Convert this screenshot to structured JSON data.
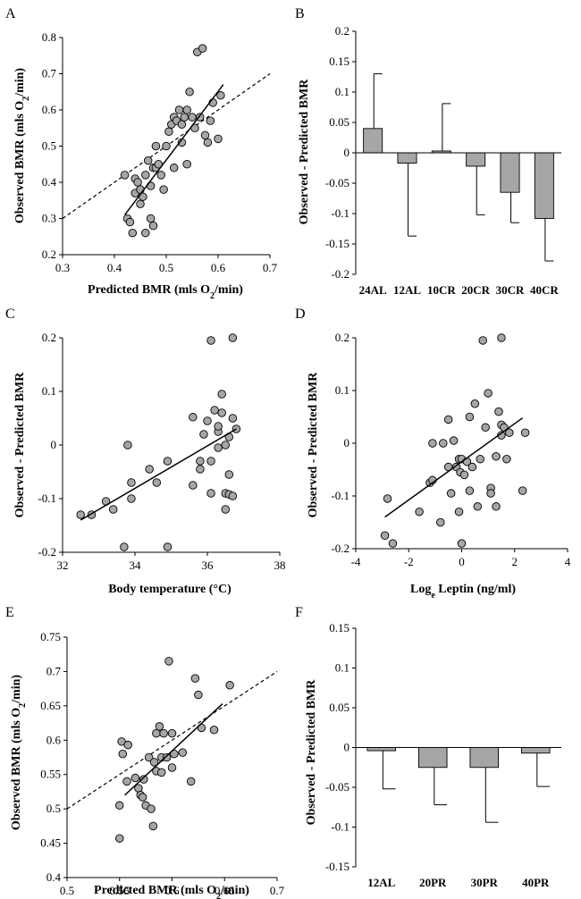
{
  "chart_data": [
    {
      "panel": "A",
      "type": "scatter",
      "xlabel": "Predicted BMR (mls O2/min)",
      "ylabel": "Observed BMR (mls O2/min)",
      "xlim": [
        0.3,
        0.7
      ],
      "ylim": [
        0.2,
        0.8
      ],
      "xticks": [
        0.3,
        0.4,
        0.5,
        0.6,
        0.7
      ],
      "yticks": [
        0.2,
        0.3,
        0.4,
        0.5,
        0.6,
        0.7,
        0.8
      ],
      "points": [
        [
          0.42,
          0.42
        ],
        [
          0.425,
          0.3
        ],
        [
          0.43,
          0.29
        ],
        [
          0.435,
          0.26
        ],
        [
          0.44,
          0.37
        ],
        [
          0.44,
          0.41
        ],
        [
          0.445,
          0.4
        ],
        [
          0.45,
          0.34
        ],
        [
          0.45,
          0.38
        ],
        [
          0.455,
          0.36
        ],
        [
          0.46,
          0.42
        ],
        [
          0.46,
          0.26
        ],
        [
          0.465,
          0.46
        ],
        [
          0.47,
          0.3
        ],
        [
          0.47,
          0.39
        ],
        [
          0.475,
          0.44
        ],
        [
          0.475,
          0.28
        ],
        [
          0.48,
          0.44
        ],
        [
          0.48,
          0.5
        ],
        [
          0.485,
          0.45
        ],
        [
          0.49,
          0.42
        ],
        [
          0.495,
          0.38
        ],
        [
          0.5,
          0.5
        ],
        [
          0.505,
          0.54
        ],
        [
          0.51,
          0.56
        ],
        [
          0.515,
          0.58
        ],
        [
          0.515,
          0.44
        ],
        [
          0.52,
          0.57
        ],
        [
          0.525,
          0.6
        ],
        [
          0.53,
          0.56
        ],
        [
          0.53,
          0.51
        ],
        [
          0.535,
          0.58
        ],
        [
          0.54,
          0.45
        ],
        [
          0.54,
          0.6
        ],
        [
          0.545,
          0.65
        ],
        [
          0.55,
          0.58
        ],
        [
          0.555,
          0.55
        ],
        [
          0.56,
          0.76
        ],
        [
          0.565,
          0.58
        ],
        [
          0.57,
          0.77
        ],
        [
          0.575,
          0.53
        ],
        [
          0.58,
          0.51
        ],
        [
          0.585,
          0.57
        ],
        [
          0.59,
          0.62
        ],
        [
          0.6,
          0.52
        ],
        [
          0.605,
          0.64
        ]
      ],
      "fit_line": {
        "x": [
          0.42,
          0.61
        ],
        "y": [
          0.31,
          0.67
        ]
      },
      "identity_line": {
        "x": [
          0.3,
          0.7
        ],
        "y": [
          0.3,
          0.7
        ]
      }
    },
    {
      "panel": "B",
      "type": "bar",
      "ylabel": "Observed - Predicted BMR",
      "ylim": [
        -0.2,
        0.2
      ],
      "yticks": [
        -0.2,
        -0.15,
        -0.1,
        -0.05,
        0,
        0.05,
        0.1,
        0.15,
        0.2
      ],
      "categories": [
        "24AL",
        "12AL",
        "10CR",
        "20CR",
        "30CR",
        "40CR"
      ],
      "values": [
        0.04,
        -0.017,
        0.003,
        -0.022,
        -0.065,
        -0.108
      ],
      "errors": [
        0.09,
        0.12,
        0.078,
        0.08,
        0.05,
        0.07
      ]
    },
    {
      "panel": "C",
      "type": "scatter",
      "xlabel": "Body temperature (°C)",
      "ylabel": "Observed - Predicted BMR",
      "xlim": [
        32,
        38
      ],
      "ylim": [
        -0.2,
        0.2
      ],
      "xticks": [
        32,
        34,
        36,
        38
      ],
      "yticks": [
        -0.2,
        -0.1,
        0,
        0.1,
        0.2
      ],
      "points": [
        [
          32.5,
          -0.13
        ],
        [
          32.8,
          -0.13
        ],
        [
          33.2,
          -0.105
        ],
        [
          33.4,
          -0.12
        ],
        [
          33.7,
          -0.19
        ],
        [
          33.8,
          0.0
        ],
        [
          33.9,
          -0.07
        ],
        [
          33.9,
          -0.1
        ],
        [
          34.4,
          -0.045
        ],
        [
          34.6,
          -0.07
        ],
        [
          34.9,
          -0.03
        ],
        [
          34.9,
          -0.19
        ],
        [
          35.6,
          0.052
        ],
        [
          35.6,
          -0.075
        ],
        [
          35.8,
          -0.03
        ],
        [
          35.8,
          -0.045
        ],
        [
          35.9,
          0.02
        ],
        [
          36.0,
          0.045
        ],
        [
          36.1,
          -0.03
        ],
        [
          36.1,
          -0.09
        ],
        [
          36.1,
          0.195
        ],
        [
          36.2,
          0.065
        ],
        [
          36.3,
          0.025
        ],
        [
          36.3,
          -0.005
        ],
        [
          36.3,
          0.035
        ],
        [
          36.4,
          0.06
        ],
        [
          36.4,
          0.095
        ],
        [
          36.5,
          -0.12
        ],
        [
          36.5,
          -0.09
        ],
        [
          36.5,
          0.0
        ],
        [
          36.6,
          0.015
        ],
        [
          36.6,
          -0.055
        ],
        [
          36.6,
          -0.092
        ],
        [
          36.7,
          0.2
        ],
        [
          36.7,
          -0.095
        ],
        [
          36.7,
          0.05
        ],
        [
          36.8,
          0.03
        ]
      ],
      "fit_line": {
        "x": [
          32.5,
          36.8
        ],
        "y": [
          -0.14,
          0.03
        ]
      }
    },
    {
      "panel": "D",
      "type": "scatter",
      "xlabel": "Loge Leptin (ng/ml)",
      "ylabel": "Observed - Predicted BMR",
      "xlim": [
        -4,
        4
      ],
      "ylim": [
        -0.2,
        0.2
      ],
      "xticks": [
        -4,
        -2,
        0,
        2,
        4
      ],
      "yticks": [
        -0.2,
        -0.1,
        0,
        0.1,
        0.2
      ],
      "points": [
        [
          -2.9,
          -0.175
        ],
        [
          -2.8,
          -0.105
        ],
        [
          -2.6,
          -0.19
        ],
        [
          -1.6,
          -0.13
        ],
        [
          -1.2,
          -0.075
        ],
        [
          -1.1,
          -0.07
        ],
        [
          -1.1,
          0.0
        ],
        [
          -0.8,
          -0.15
        ],
        [
          -0.7,
          0.0
        ],
        [
          -0.5,
          -0.045
        ],
        [
          -0.5,
          0.045
        ],
        [
          -0.4,
          -0.095
        ],
        [
          -0.3,
          0.005
        ],
        [
          -0.2,
          -0.045
        ],
        [
          -0.1,
          -0.03
        ],
        [
          -0.1,
          -0.13
        ],
        [
          -0.05,
          -0.055
        ],
        [
          0.0,
          -0.19
        ],
        [
          0.0,
          -0.03
        ],
        [
          0.1,
          -0.06
        ],
        [
          0.2,
          -0.035
        ],
        [
          0.3,
          0.05
        ],
        [
          0.3,
          -0.09
        ],
        [
          0.4,
          -0.045
        ],
        [
          0.5,
          0.075
        ],
        [
          0.6,
          -0.12
        ],
        [
          0.7,
          -0.03
        ],
        [
          0.8,
          0.195
        ],
        [
          0.9,
          0.03
        ],
        [
          1.0,
          0.095
        ],
        [
          1.1,
          -0.085
        ],
        [
          1.1,
          -0.095
        ],
        [
          1.3,
          -0.12
        ],
        [
          1.3,
          -0.025
        ],
        [
          1.4,
          0.06
        ],
        [
          1.5,
          0.035
        ],
        [
          1.5,
          0.015
        ],
        [
          1.6,
          0.03
        ],
        [
          1.7,
          -0.03
        ],
        [
          1.8,
          0.02
        ],
        [
          2.3,
          -0.09
        ],
        [
          2.4,
          0.02
        ],
        [
          1.5,
          0.2
        ]
      ],
      "fit_line": {
        "x": [
          -2.9,
          2.3
        ],
        "y": [
          -0.14,
          0.048
        ]
      }
    },
    {
      "panel": "E",
      "type": "scatter",
      "xlabel": "Predicted BMR (mls O2/min)",
      "ylabel": "Observed BMR (mls O2/min)",
      "xlim": [
        0.5,
        0.7
      ],
      "ylim": [
        0.4,
        0.75
      ],
      "xticks": [
        0.5,
        0.55,
        0.6,
        0.65,
        0.7
      ],
      "yticks": [
        0.4,
        0.45,
        0.5,
        0.55,
        0.6,
        0.65,
        0.7,
        0.75
      ],
      "points": [
        [
          0.55,
          0.457
        ],
        [
          0.55,
          0.505
        ],
        [
          0.552,
          0.598
        ],
        [
          0.553,
          0.58
        ],
        [
          0.557,
          0.54
        ],
        [
          0.558,
          0.593
        ],
        [
          0.565,
          0.545
        ],
        [
          0.568,
          0.53
        ],
        [
          0.57,
          0.52
        ],
        [
          0.572,
          0.517
        ],
        [
          0.573,
          0.543
        ],
        [
          0.575,
          0.505
        ],
        [
          0.578,
          0.575
        ],
        [
          0.58,
          0.5
        ],
        [
          0.582,
          0.475
        ],
        [
          0.583,
          0.568
        ],
        [
          0.585,
          0.555
        ],
        [
          0.585,
          0.61
        ],
        [
          0.588,
          0.62
        ],
        [
          0.59,
          0.553
        ],
        [
          0.59,
          0.575
        ],
        [
          0.592,
          0.61
        ],
        [
          0.595,
          0.575
        ],
        [
          0.597,
          0.715
        ],
        [
          0.6,
          0.61
        ],
        [
          0.6,
          0.56
        ],
        [
          0.61,
          0.582
        ],
        [
          0.618,
          0.54
        ],
        [
          0.622,
          0.69
        ],
        [
          0.625,
          0.666
        ],
        [
          0.628,
          0.618
        ],
        [
          0.64,
          0.615
        ],
        [
          0.655,
          0.68
        ],
        [
          0.602,
          0.58
        ]
      ],
      "fit_line": {
        "x": [
          0.555,
          0.648
        ],
        "y": [
          0.52,
          0.653
        ]
      },
      "identity_line": {
        "x": [
          0.5,
          0.7
        ],
        "y": [
          0.5,
          0.7
        ]
      }
    },
    {
      "panel": "F",
      "type": "bar",
      "ylabel": "Observed - Predicted BMR",
      "ylim": [
        -0.15,
        0.15
      ],
      "yticks": [
        -0.15,
        -0.1,
        -0.05,
        0,
        0.05,
        0.1,
        0.15
      ],
      "categories": [
        "12AL",
        "20PR",
        "30PR",
        "40PR"
      ],
      "values": [
        -0.004,
        -0.025,
        -0.025,
        -0.007
      ],
      "errors": [
        0.048,
        0.047,
        0.069,
        0.042
      ]
    }
  ]
}
